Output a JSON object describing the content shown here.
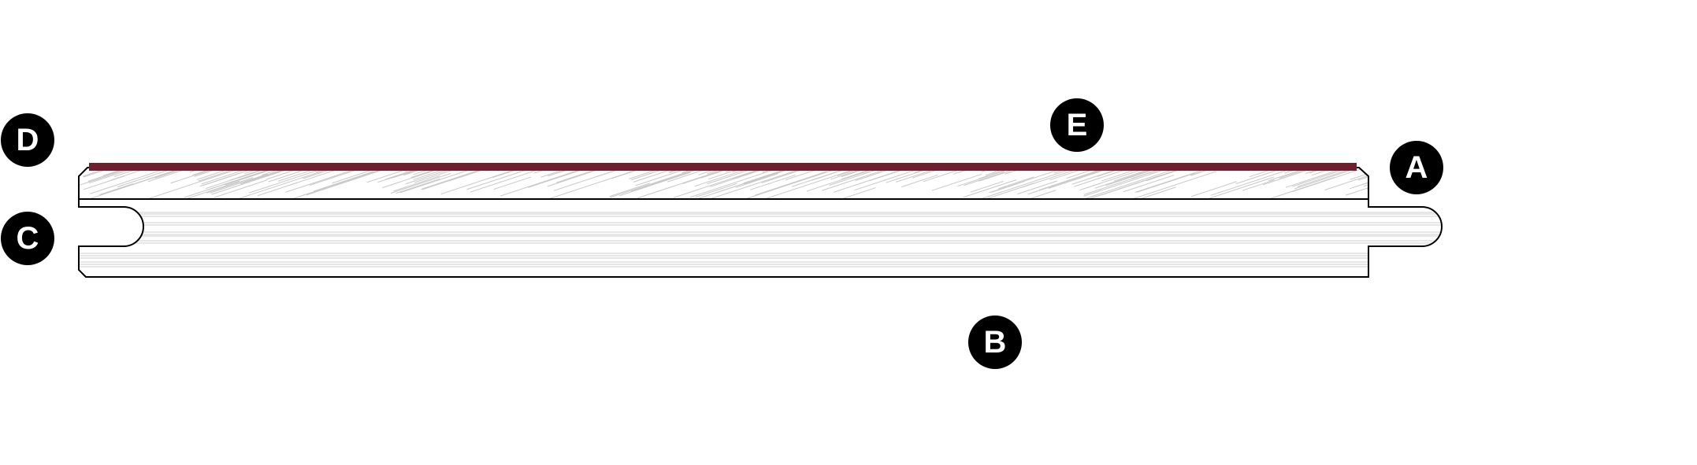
{
  "diagram": {
    "labels": {
      "A": "A",
      "B": "B",
      "C": "C",
      "D": "D",
      "E": "E"
    },
    "colors": {
      "wear_layer": "#6e1e2c",
      "outline": "#000000",
      "grain": "#c8c8c8",
      "marker": "#000000"
    }
  }
}
